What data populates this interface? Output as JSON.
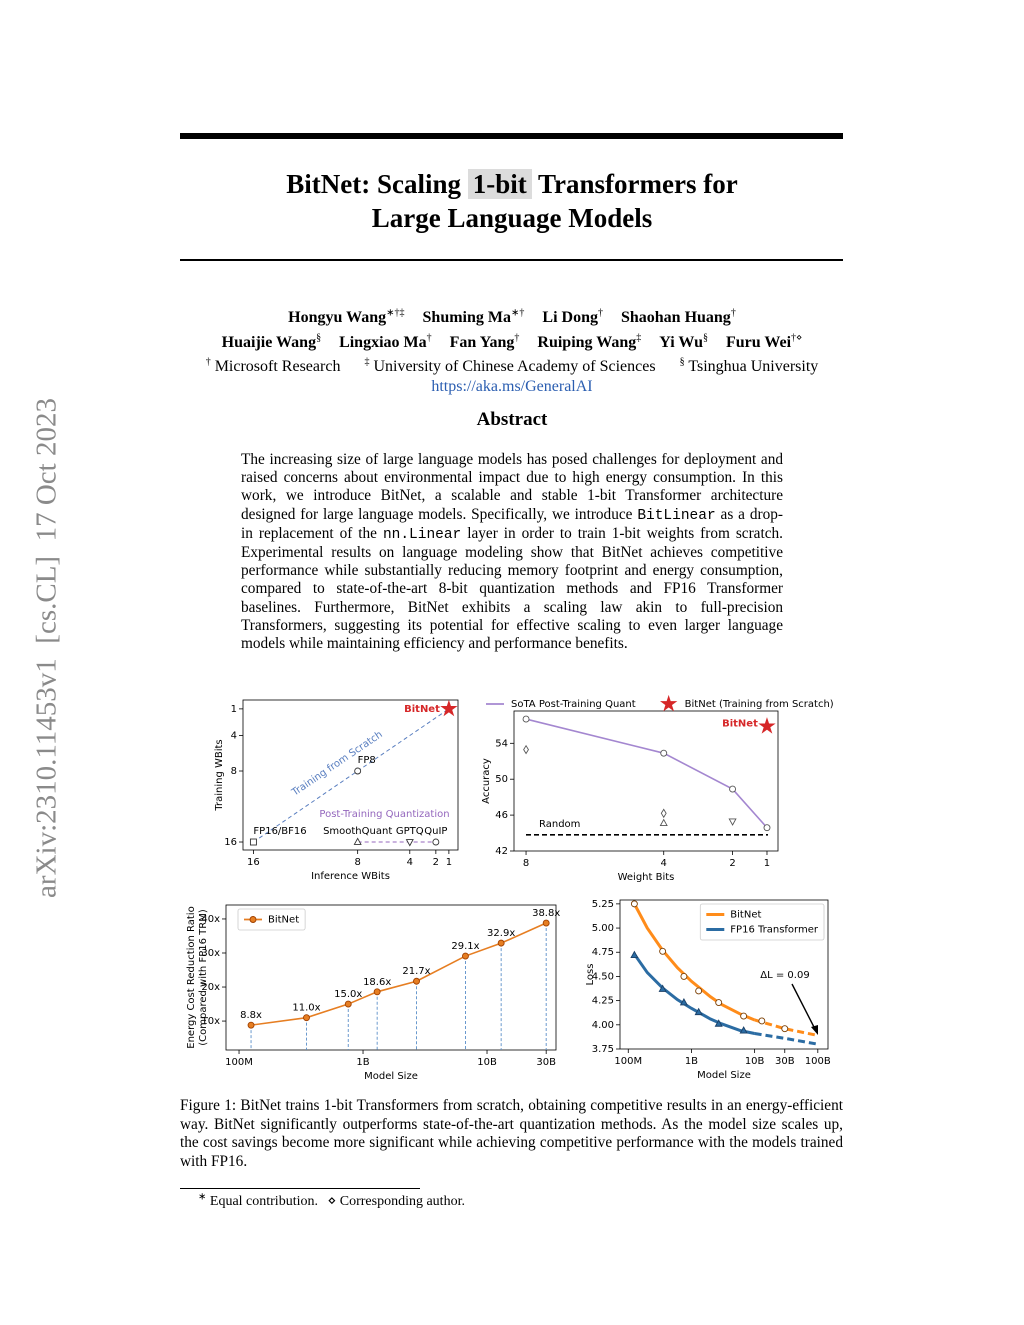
{
  "sidebar": "arXiv:2310.11453v1  [cs.CL]  17 Oct 2023",
  "title": [
    "BitNet: Scaling",
    "1-bit",
    "Transformers for",
    "Large Language Models"
  ],
  "author_rows": [
    [
      {
        "name": "Hongyu Wang",
        "marks": "∗†‡"
      },
      {
        "name": "Shuming Ma",
        "marks": "∗†"
      },
      {
        "name": "Li Dong",
        "marks": "†"
      },
      {
        "name": "Shaohan Huang",
        "marks": "†"
      }
    ],
    [
      {
        "name": "Huaijie Wang",
        "marks": "§"
      },
      {
        "name": "Lingxiao Ma",
        "marks": "†"
      },
      {
        "name": "Fan Yang",
        "marks": "†"
      },
      {
        "name": "Ruiping Wang",
        "marks": "‡"
      },
      {
        "name": "Yi Wu",
        "marks": "§"
      },
      {
        "name": "Furu Wei",
        "marks": "†⋄"
      }
    ]
  ],
  "affiliations": [
    {
      "mark": "†",
      "name": "Microsoft Research"
    },
    {
      "mark": "‡",
      "name": "University of Chinese Academy of Sciences"
    },
    {
      "mark": "§",
      "name": "Tsinghua University"
    }
  ],
  "url": "https://aka.ms/GeneralAI",
  "abstract": {
    "heading": "Abstract",
    "text": [
      "The increasing size of large language models has posed challenges for deployment and raised concerns about environmental impact due to high energy consumption. In this work, we introduce BitNet, a scalable and stable 1-bit Transformer architecture designed for large language models. Specifically, we introduce ",
      "BitLinear",
      " as a drop-in replacement of the ",
      "nn.Linear",
      " layer in order to train 1-bit weights from scratch. Experimental results on language modeling show that BitNet achieves competitive performance while substantially reducing memory footprint and energy consumption, compared to state-of-the-art 8-bit quantization methods and FP16 Transformer baselines. Furthermore, BitNet exhibits a scaling law akin to full-precision Transformers, suggesting its potential for effective scaling to even larger language models while maintaining efficiency and performance benefits."
    ]
  },
  "chart_data": [
    {
      "type": "scatter",
      "xlabel": "Inference WBits",
      "ylabel": "Training WBits",
      "xlim": [
        16.8,
        0.3
      ],
      "ylim": [
        16.9,
        0
      ],
      "xticks": [
        16,
        8,
        4,
        2,
        1
      ],
      "yticks": [
        1,
        4,
        8,
        16
      ],
      "series": [
        {
          "name": "Training from Scratch",
          "color": "#5a7fc0",
          "line": "dashed",
          "x": [
            16,
            8,
            1
          ],
          "values": [
            16,
            8,
            1
          ],
          "markers": [
            "s",
            "o",
            "*"
          ],
          "marker_colors": [
            "#333333",
            "#333333",
            "#d62728"
          ],
          "marker_fill": "none",
          "point_labels": [
            "FP16/BF16",
            "FP8",
            "BitNet"
          ]
        },
        {
          "name": "Post-Training Quantization",
          "color": "#9467bd",
          "line": "dashed",
          "x": [
            8,
            4,
            2
          ],
          "values": [
            16,
            16,
            16
          ],
          "markers": [
            "^",
            "v",
            "o"
          ],
          "marker_colors": [
            "#333333",
            "#333333",
            "#333333"
          ],
          "marker_fill": "none",
          "point_labels": [
            "SmoothQuant",
            "GPTQ",
            "QuIP"
          ]
        }
      ]
    },
    {
      "type": "line",
      "xlabel": "Weight Bits",
      "ylabel": "Accuracy",
      "xlim": [
        8.35,
        0.68
      ],
      "ylim": [
        42,
        57.6
      ],
      "xticks": [
        8,
        4,
        2,
        1
      ],
      "yticks": [
        42,
        46,
        50,
        54
      ],
      "legend": "top",
      "annotations": [
        "BitNet"
      ],
      "reference_line": {
        "label": "Random",
        "value": 43.8
      },
      "series": [
        {
          "name": "SoTA Post-Training Quant",
          "color": "#a487d0",
          "line": "solid",
          "marker": "o",
          "marker_fill": "none",
          "marker_edge": "#555555",
          "x": [
            8,
            4,
            2,
            1
          ],
          "values": [
            56.7,
            52.9,
            48.9,
            44.6
          ]
        },
        {
          "name": "BitNet (Training from Scratch)",
          "color": "#d62728",
          "line": "none",
          "marker": "*",
          "x": [
            1
          ],
          "values": [
            55.9
          ]
        },
        {
          "color": "#555555",
          "line": "none",
          "marker": "d",
          "marker_fill": "none",
          "x": [
            8,
            4
          ],
          "values": [
            53.3,
            46.2
          ]
        },
        {
          "color": "#555555",
          "line": "none",
          "marker": "^",
          "marker_fill": "none",
          "x": [
            4
          ],
          "values": [
            45.1
          ]
        },
        {
          "color": "#555555",
          "line": "none",
          "marker": "v",
          "marker_fill": "none",
          "x": [
            2
          ],
          "values": [
            45.3
          ]
        }
      ]
    },
    {
      "type": "line",
      "xlabel": "Model Size",
      "ylabel": [
        "Energy Cost Reduction Ratio",
        "(Compared with FP16 TRM)"
      ],
      "xscale": "log",
      "xlim": [
        78500000,
        36000000000
      ],
      "ylim": [
        1.5,
        44.1
      ],
      "xticks": [
        {
          "value": 100000000,
          "label": "100M"
        },
        {
          "value": 1000000000,
          "label": "1B"
        },
        {
          "value": 10000000000,
          "label": "10B"
        },
        {
          "value": 30000000000,
          "label": "30B"
        }
      ],
      "yticks": [
        {
          "value": 10,
          "label": "10x"
        },
        {
          "value": 20,
          "label": "20x"
        },
        {
          "value": 30,
          "label": "30x"
        },
        {
          "value": 40,
          "label": "40x"
        }
      ],
      "legend": "upper left",
      "drop_lines": true,
      "drop_line_color": "#5b8fc9",
      "series": [
        {
          "name": "BitNet",
          "color": "#e67e22",
          "line": "solid",
          "marker": "o",
          "marker_edge": "#a04000",
          "x": [
            125000000,
            350000000,
            760000000,
            1300000000,
            2700000000,
            6700000000,
            13000000000,
            30000000000
          ],
          "values": [
            8.8,
            11.0,
            15.0,
            18.6,
            21.7,
            29.1,
            32.9,
            38.8
          ],
          "value_labels": [
            "8.8x",
            "11.0x",
            "15.0x",
            "18.6x",
            "21.7x",
            "29.1x",
            "32.9x",
            "38.8x"
          ]
        }
      ]
    },
    {
      "type": "line",
      "xlabel": "Model Size",
      "ylabel": "Loss",
      "xscale": "log",
      "xlim": [
        74000000,
        145000000000
      ],
      "ylim": [
        3.75,
        5.29
      ],
      "xticks": [
        {
          "value": 100000000,
          "label": "100M"
        },
        {
          "value": 1000000000,
          "label": "1B"
        },
        {
          "value": 10000000000,
          "label": "10B"
        },
        {
          "value": 30000000000,
          "label": "30B"
        },
        {
          "value": 100000000000,
          "label": "100B"
        }
      ],
      "yticks": [
        5.25,
        {
          "value": 5,
          "label": "5.00"
        },
        4.75,
        {
          "value": 4.5,
          "label": "4.50"
        },
        4.25,
        {
          "value": 4,
          "label": "4.00"
        },
        3.75
      ],
      "legend": "upper right",
      "annotations": [
        "ΔL = 0.09"
      ],
      "fit_dashed_from": 10000000000,
      "series": [
        {
          "name": "BitNet",
          "color": "#ff8c1a",
          "line": "none",
          "marker": "o",
          "marker_fill": "none",
          "marker_edge": "#7a3d00",
          "x": [
            125000000,
            350000000,
            760000000,
            1300000000,
            2700000000,
            6700000000,
            13000000000,
            30000000000
          ],
          "values": [
            5.25,
            4.76,
            4.5,
            4.35,
            4.23,
            4.09,
            4.04,
            3.96
          ],
          "fit": {
            "x": [
              125000000,
              200000000,
              350000000,
              600000000,
              1000000000,
              2000000000,
              3000000000,
              6000000000,
              10000000000,
              30000000000,
              100000000000
            ],
            "values": [
              5.25,
              5.0,
              4.77,
              4.59,
              4.45,
              4.29,
              4.21,
              4.11,
              4.05,
              3.96,
              3.89
            ]
          }
        },
        {
          "name": "FP16 Transformer",
          "color": "#2b6ca3",
          "line": "none",
          "marker": "^",
          "marker_edge": "#1a3f66",
          "x": [
            125000000,
            350000000,
            760000000,
            1300000000,
            2700000000,
            6700000000
          ],
          "values": [
            4.72,
            4.37,
            4.23,
            4.13,
            4.01,
            3.94
          ],
          "fit": {
            "x": [
              125000000,
              200000000,
              350000000,
              600000000,
              1000000000,
              2000000000,
              3000000000,
              6000000000,
              10000000000,
              30000000000,
              100000000000
            ],
            "values": [
              4.73,
              4.54,
              4.38,
              4.26,
              4.17,
              4.06,
              4.01,
              3.94,
              3.91,
              3.86,
              3.8
            ]
          }
        }
      ]
    }
  ],
  "caption": "Figure 1: BitNet trains 1-bit Transformers from scratch, obtaining competitive results in an energy-efficient way. BitNet significantly outperforms state-of-the-art quantization methods. As the model size scales up, the cost savings become more significant while achieving competitive performance with the models trained with FP16.",
  "footnote": [
    {
      "mark": "∗",
      "text": "Equal contribution."
    },
    {
      "mark": "⋄",
      "text": "Corresponding author."
    }
  ]
}
